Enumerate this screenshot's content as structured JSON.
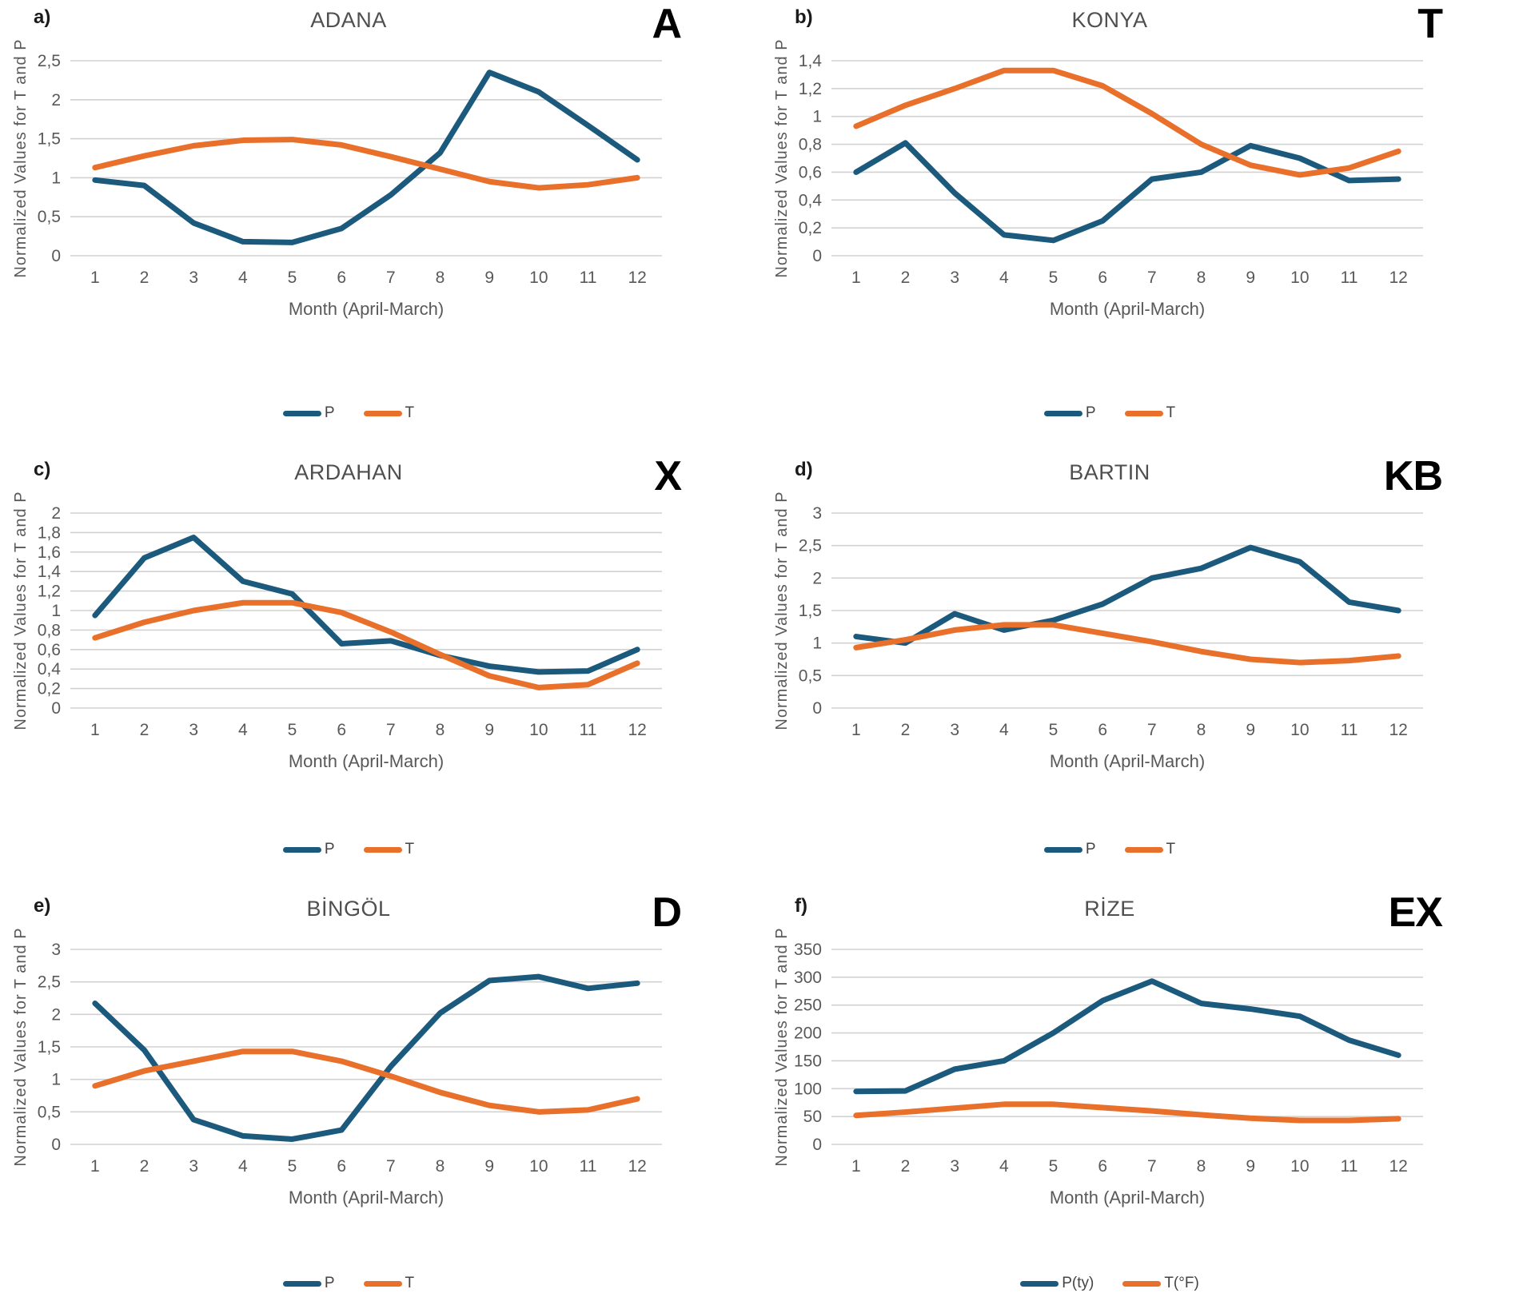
{
  "figure": {
    "background": "#FFFFFF",
    "colors": {
      "P": "#1B5A7D",
      "T": "#E8702A"
    },
    "gridline_color": "#D2D2D2",
    "decimal_separator": ","
  },
  "chart_data": [
    {
      "type": "line",
      "panel_label": "a)",
      "title": "ADANA",
      "code": "A",
      "xlabel": "Month (April-March)",
      "ylabel": "Normalized Values for T and P",
      "categories": [
        1,
        2,
        3,
        4,
        5,
        6,
        7,
        8,
        9,
        10,
        11,
        12
      ],
      "ylim": [
        0,
        2.5
      ],
      "ytick_step": 0.5,
      "grid": true,
      "legend_position": "bottom",
      "series": [
        {
          "name": "P",
          "color_key": "P",
          "values": [
            0.97,
            0.9,
            0.42,
            0.18,
            0.17,
            0.35,
            0.78,
            1.32,
            2.35,
            2.1,
            1.67,
            1.23
          ]
        },
        {
          "name": "T",
          "color_key": "T",
          "values": [
            1.13,
            1.28,
            1.41,
            1.48,
            1.49,
            1.42,
            1.27,
            1.11,
            0.95,
            0.87,
            0.91,
            1.0
          ]
        }
      ]
    },
    {
      "type": "line",
      "panel_label": "b)",
      "title": "KONYA",
      "code": "T",
      "xlabel": "Month (April-March)",
      "ylabel": "Normalized Values for T and P",
      "categories": [
        1,
        2,
        3,
        4,
        5,
        6,
        7,
        8,
        9,
        10,
        11,
        12
      ],
      "ylim": [
        0,
        1.4
      ],
      "ytick_step": 0.2,
      "grid": true,
      "legend_position": "bottom",
      "series": [
        {
          "name": "P",
          "color_key": "P",
          "values": [
            0.6,
            0.81,
            0.45,
            0.15,
            0.11,
            0.25,
            0.55,
            0.6,
            0.79,
            0.7,
            0.54,
            0.55
          ]
        },
        {
          "name": "T",
          "color_key": "T",
          "values": [
            0.93,
            1.08,
            1.2,
            1.33,
            1.33,
            1.22,
            1.02,
            0.8,
            0.65,
            0.58,
            0.63,
            0.75
          ]
        }
      ]
    },
    {
      "type": "line",
      "panel_label": "c)",
      "title": "ARDAHAN",
      "code": "X",
      "xlabel": "Month (April-March)",
      "ylabel": "Normalized Values for T and P",
      "categories": [
        1,
        2,
        3,
        4,
        5,
        6,
        7,
        8,
        9,
        10,
        11,
        12
      ],
      "ylim": [
        0,
        2.0
      ],
      "ytick_step": 0.2,
      "grid": true,
      "legend_position": "bottom",
      "series": [
        {
          "name": "P",
          "color_key": "P",
          "values": [
            0.95,
            1.54,
            1.75,
            1.3,
            1.17,
            0.66,
            0.69,
            0.54,
            0.43,
            0.37,
            0.38,
            0.6
          ]
        },
        {
          "name": "T",
          "color_key": "T",
          "values": [
            0.72,
            0.88,
            1.0,
            1.08,
            1.08,
            0.98,
            0.78,
            0.55,
            0.33,
            0.21,
            0.24,
            0.46
          ]
        }
      ]
    },
    {
      "type": "line",
      "panel_label": "d)",
      "title": "BARTIN",
      "code": "KB",
      "xlabel": "Month (April-March)",
      "ylabel": "Normalized Values for T and P",
      "categories": [
        1,
        2,
        3,
        4,
        5,
        6,
        7,
        8,
        9,
        10,
        11,
        12
      ],
      "ylim": [
        0,
        3.0
      ],
      "ytick_step": 0.5,
      "grid": true,
      "legend_position": "bottom",
      "series": [
        {
          "name": "P",
          "color_key": "P",
          "values": [
            1.1,
            1.0,
            1.45,
            1.2,
            1.35,
            1.6,
            2.0,
            2.15,
            2.47,
            2.25,
            1.63,
            1.5
          ]
        },
        {
          "name": "T",
          "color_key": "T",
          "values": [
            0.93,
            1.05,
            1.2,
            1.28,
            1.28,
            1.15,
            1.02,
            0.87,
            0.75,
            0.7,
            0.73,
            0.8
          ]
        }
      ]
    },
    {
      "type": "line",
      "panel_label": "e)",
      "title": "BİNGÖL",
      "code": "D",
      "xlabel": "Month (April-March)",
      "ylabel": "Normalized Values for T and P",
      "categories": [
        1,
        2,
        3,
        4,
        5,
        6,
        7,
        8,
        9,
        10,
        11,
        12
      ],
      "ylim": [
        0,
        3.0
      ],
      "ytick_step": 0.5,
      "grid": true,
      "legend_position": "bottom",
      "series": [
        {
          "name": "P",
          "color_key": "P",
          "values": [
            2.17,
            1.45,
            0.38,
            0.13,
            0.08,
            0.22,
            1.2,
            2.02,
            2.52,
            2.58,
            2.4,
            2.48
          ]
        },
        {
          "name": "T",
          "color_key": "T",
          "values": [
            0.9,
            1.13,
            1.28,
            1.43,
            1.43,
            1.28,
            1.05,
            0.8,
            0.6,
            0.5,
            0.53,
            0.7
          ]
        }
      ]
    },
    {
      "type": "line",
      "panel_label": "f)",
      "title": "RİZE",
      "code": "EX",
      "xlabel": "Month (April-March)",
      "ylabel": "Normalized Values for T and P",
      "categories": [
        1,
        2,
        3,
        4,
        5,
        6,
        7,
        8,
        9,
        10,
        11,
        12
      ],
      "ylim": [
        0,
        350
      ],
      "ytick_step": 50,
      "grid": true,
      "legend_position": "bottom",
      "series": [
        {
          "name": "P(ty)",
          "color_key": "P",
          "values": [
            95,
            96,
            135,
            150,
            200,
            258,
            293,
            253,
            243,
            230,
            187,
            160
          ]
        },
        {
          "name": "T(°F)",
          "color_key": "T",
          "values": [
            52,
            58,
            65,
            72,
            72,
            66,
            60,
            53,
            47,
            43,
            43,
            46
          ]
        }
      ]
    }
  ]
}
